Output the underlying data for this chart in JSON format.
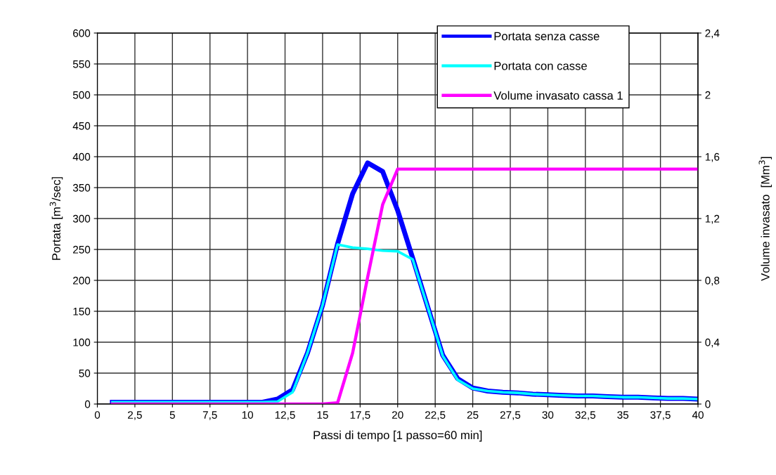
{
  "chart_data": {
    "type": "line",
    "xlabel": "Passi di tempo [1 passo=60 min]",
    "ylabel": "Portata [m$^{3}$/sec]",
    "y2label": "Volume invasato  [Mm$^{3}$]",
    "x": [
      1,
      2,
      3,
      4,
      5,
      6,
      7,
      8,
      9,
      10,
      11,
      12,
      13,
      14,
      15,
      16,
      17,
      18,
      19,
      20,
      21,
      22,
      23,
      24,
      25,
      26,
      27,
      28,
      29,
      30,
      31,
      32,
      33,
      34,
      35,
      36,
      37,
      38,
      39,
      40
    ],
    "series": [
      {
        "name": "Portata senza casse",
        "color": "#0000ff",
        "values": [
          3,
          3,
          3,
          3,
          3,
          3,
          3,
          3,
          3,
          3,
          3,
          8,
          23,
          83,
          160,
          259,
          340,
          390,
          376,
          313,
          236,
          157,
          79,
          41,
          26,
          21,
          19,
          18,
          16,
          15,
          14,
          13,
          13,
          12,
          11,
          11,
          10,
          9,
          9,
          8
        ]
      },
      {
        "name": "Portata con casse",
        "color": "#00ffff",
        "values": [
          3,
          3,
          3,
          3,
          3,
          3,
          3,
          3,
          3,
          3,
          3,
          4,
          19,
          83,
          160,
          258,
          253,
          251,
          248,
          247,
          234,
          157,
          78,
          39,
          25,
          21,
          19,
          18,
          16,
          15,
          14,
          13,
          13,
          12,
          11,
          11,
          10,
          9,
          9,
          8
        ]
      },
      {
        "name": "Volume invasato cassa 1",
        "color": "#ff00ff",
        "axis": "y2",
        "values": [
          0,
          0,
          0,
          0,
          0,
          0,
          0,
          0,
          0,
          0,
          0,
          0,
          0,
          0,
          0,
          0.008,
          0.33,
          0.82,
          1.29,
          1.52,
          1.52,
          1.52,
          1.52,
          1.52,
          1.52,
          1.52,
          1.52,
          1.52,
          1.52,
          1.52,
          1.52,
          1.52,
          1.52,
          1.52,
          1.52,
          1.52,
          1.52,
          1.52,
          1.52,
          1.52
        ]
      }
    ],
    "xlim": [
      0,
      40
    ],
    "xticks": [
      0,
      {
        "value": 2.5,
        "label": "2,5"
      },
      5,
      {
        "value": 7.5,
        "label": "7,5"
      },
      10,
      {
        "value": 12.5,
        "label": "12,5"
      },
      15,
      {
        "value": 17.5,
        "label": "17,5"
      },
      20,
      {
        "value": 22.5,
        "label": "22,5"
      },
      25,
      {
        "value": 27.5,
        "label": "27,5"
      },
      30,
      {
        "value": 32.5,
        "label": "32,5"
      },
      35,
      {
        "value": 37.5,
        "label": "37,5"
      },
      40
    ],
    "ylim": [
      0,
      600
    ],
    "yticks": [
      0,
      50,
      100,
      150,
      200,
      250,
      300,
      350,
      400,
      450,
      500,
      550,
      600
    ],
    "y2lim": [
      0,
      2.4
    ],
    "y2ticks": [
      0,
      {
        "value": 0.4,
        "label": "0,4"
      },
      {
        "value": 0.8,
        "label": "0,8"
      },
      {
        "value": 1.2,
        "label": "1,2"
      },
      {
        "value": 1.6,
        "label": "1,6"
      },
      2,
      {
        "value": 2.4,
        "label": "2,4"
      }
    ],
    "grid": true,
    "legend": "top right",
    "marker": "none",
    "line_style": "solid"
  }
}
